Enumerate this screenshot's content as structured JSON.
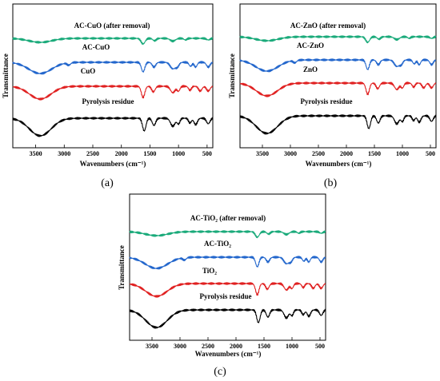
{
  "figure": {
    "panels": [
      {
        "label": "(a)",
        "xlabel": "Wavenumbers (cm⁻¹)",
        "ylabel": "Transmittance"
      },
      {
        "label": "(b)",
        "xlabel": "Wavenumbers (cm⁻¹)",
        "ylabel": "Transmittance"
      },
      {
        "label": "(c)",
        "xlabel": "Wavenumbers (cm⁻¹)",
        "ylabel": "Transmittance"
      }
    ]
  },
  "chart_data": [
    {
      "type": "line",
      "title": "",
      "xlabel": "Wavenumbers (cm⁻¹)",
      "ylabel": "Transmittance",
      "xlim": [
        3900,
        400
      ],
      "xticks": [
        3500,
        3000,
        2500,
        2000,
        1500,
        1000,
        500
      ],
      "grid": false,
      "series": [
        {
          "name": "AC-CuO (after removal)",
          "color": "#1aaa7a",
          "profile": "after"
        },
        {
          "name": "AC-CuO",
          "color": "#2266cc",
          "profile": "ac"
        },
        {
          "name": "CuO",
          "color": "#e02020",
          "profile": "metal"
        },
        {
          "name": "Pyrolysis residue",
          "color": "#000000",
          "profile": "residue"
        }
      ]
    },
    {
      "type": "line",
      "title": "",
      "xlabel": "Wavenumbers (cm⁻¹)",
      "ylabel": "Transmittance",
      "xlim": [
        3900,
        400
      ],
      "xticks": [
        3500,
        3000,
        2500,
        2000,
        1500,
        1000,
        500
      ],
      "grid": false,
      "series": [
        {
          "name": "AC-ZnO (after removal)",
          "color": "#1aaa7a",
          "profile": "after"
        },
        {
          "name": "AC-ZnO",
          "color": "#2266cc",
          "profile": "ac"
        },
        {
          "name": "ZnO",
          "color": "#e02020",
          "profile": "metal"
        },
        {
          "name": "Pyrolysis residue",
          "color": "#000000",
          "profile": "residue"
        }
      ]
    },
    {
      "type": "line",
      "title": "",
      "xlabel": "Wavenumbers (cm⁻¹)",
      "ylabel": "Transmittance",
      "xlim": [
        3900,
        400
      ],
      "xticks": [
        3500,
        3000,
        2500,
        2000,
        1500,
        1000,
        500
      ],
      "grid": false,
      "series": [
        {
          "name": "AC-TiO₂ (after removal)",
          "color": "#1aaa7a",
          "profile": "after"
        },
        {
          "name": "AC-TiO₂",
          "color": "#2266cc",
          "profile": "ac"
        },
        {
          "name": "TiO₂",
          "color": "#e02020",
          "profile": "metal"
        },
        {
          "name": "Pyrolysis residue",
          "color": "#000000",
          "profile": "residue"
        }
      ]
    }
  ]
}
